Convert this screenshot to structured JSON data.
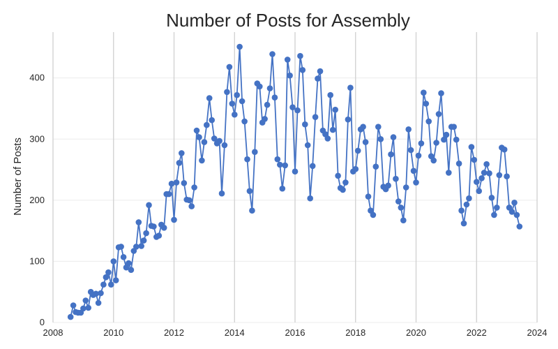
{
  "chart_data": {
    "type": "line",
    "title": "Number of Posts for Assembly",
    "xlabel": "",
    "ylabel": "Number of Posts",
    "xlim": [
      2008.0,
      2024.0
    ],
    "ylim": [
      0,
      475
    ],
    "x_ticks": [
      2008,
      2010,
      2012,
      2014,
      2016,
      2018,
      2020,
      2022,
      2024
    ],
    "y_ticks": [
      0,
      100,
      200,
      300,
      400
    ],
    "grid": true,
    "marker": "circle",
    "color": "#4472c4",
    "series": [
      {
        "x": [
          2008.58,
          2008.67,
          2008.75,
          2008.83,
          2008.92,
          2009.0,
          2009.08,
          2009.17,
          2009.25,
          2009.33,
          2009.42,
          2009.5,
          2009.58,
          2009.67,
          2009.75,
          2009.83,
          2009.92,
          2010.0,
          2010.08,
          2010.17,
          2010.25,
          2010.33,
          2010.42,
          2010.5,
          2010.58,
          2010.67,
          2010.75,
          2010.83,
          2010.92,
          2011.0,
          2011.08,
          2011.17,
          2011.25,
          2011.33,
          2011.42,
          2011.5,
          2011.58,
          2011.67,
          2011.75,
          2011.83,
          2011.92,
          2012.0,
          2012.08,
          2012.17,
          2012.25,
          2012.33,
          2012.42,
          2012.5,
          2012.58,
          2012.67,
          2012.75,
          2012.83,
          2012.92,
          2013.0,
          2013.08,
          2013.17,
          2013.25,
          2013.33,
          2013.42,
          2013.5,
          2013.58,
          2013.67,
          2013.75,
          2013.83,
          2013.92,
          2014.0,
          2014.08,
          2014.17,
          2014.25,
          2014.33,
          2014.42,
          2014.5,
          2014.58,
          2014.67,
          2014.75,
          2014.83,
          2014.92,
          2015.0,
          2015.08,
          2015.17,
          2015.25,
          2015.33,
          2015.42,
          2015.5,
          2015.58,
          2015.67,
          2015.75,
          2015.83,
          2015.92,
          2016.0,
          2016.08,
          2016.17,
          2016.25,
          2016.33,
          2016.42,
          2016.5,
          2016.58,
          2016.67,
          2016.75,
          2016.83,
          2016.92,
          2017.0,
          2017.08,
          2017.17,
          2017.25,
          2017.33,
          2017.42,
          2017.5,
          2017.58,
          2017.67,
          2017.75,
          2017.83,
          2017.92,
          2018.0,
          2018.08,
          2018.17,
          2018.25,
          2018.33,
          2018.42,
          2018.5,
          2018.58,
          2018.67,
          2018.75,
          2018.83,
          2018.92,
          2019.0,
          2019.08,
          2019.17,
          2019.25,
          2019.33,
          2019.42,
          2019.5,
          2019.58,
          2019.67,
          2019.75,
          2019.83,
          2019.92,
          2020.0,
          2020.08,
          2020.17,
          2020.25,
          2020.33,
          2020.42,
          2020.5,
          2020.58,
          2020.67,
          2020.75,
          2020.83,
          2020.92,
          2021.0,
          2021.08,
          2021.17,
          2021.25,
          2021.33,
          2021.42,
          2021.5,
          2021.58,
          2021.67,
          2021.75,
          2021.83,
          2021.92,
          2022.0,
          2022.08,
          2022.17,
          2022.25,
          2022.33,
          2022.42,
          2022.5,
          2022.58,
          2022.67,
          2022.75,
          2022.83,
          2022.92,
          2023.0,
          2023.08,
          2023.17,
          2023.25,
          2023.33,
          2023.42
        ],
        "values": [
          9,
          28,
          17,
          16,
          16,
          23,
          36,
          24,
          50,
          45,
          47,
          32,
          48,
          62,
          74,
          82,
          62,
          100,
          69,
          123,
          124,
          107,
          90,
          97,
          86,
          117,
          124,
          164,
          125,
          134,
          146,
          192,
          158,
          157,
          140,
          142,
          160,
          155,
          210,
          210,
          227,
          168,
          229,
          261,
          277,
          228,
          201,
          200,
          190,
          221,
          314,
          303,
          265,
          295,
          323,
          367,
          331,
          301,
          293,
          297,
          211,
          290,
          377,
          418,
          358,
          340,
          372,
          451,
          362,
          329,
          267,
          215,
          183,
          279,
          391,
          386,
          327,
          333,
          356,
          383,
          439,
          368,
          267,
          258,
          219,
          257,
          430,
          404,
          352,
          247,
          347,
          436,
          413,
          324,
          290,
          203,
          256,
          336,
          399,
          411,
          314,
          308,
          301,
          372,
          315,
          348,
          240,
          220,
          217,
          229,
          332,
          384,
          247,
          251,
          281,
          316,
          320,
          295,
          206,
          183,
          176,
          255,
          320,
          300,
          222,
          218,
          224,
          275,
          303,
          235,
          198,
          188,
          167,
          221,
          316,
          282,
          248,
          229,
          273,
          293,
          376,
          358,
          329,
          272,
          265,
          294,
          341,
          375,
          299,
          307,
          245,
          320,
          320,
          299,
          260,
          183,
          162,
          193,
          203,
          287,
          266,
          230,
          215,
          236,
          245,
          259,
          244,
          204,
          176,
          188,
          241,
          286,
          283,
          239,
          188,
          181,
          196,
          176,
          157
        ]
      }
    ]
  }
}
